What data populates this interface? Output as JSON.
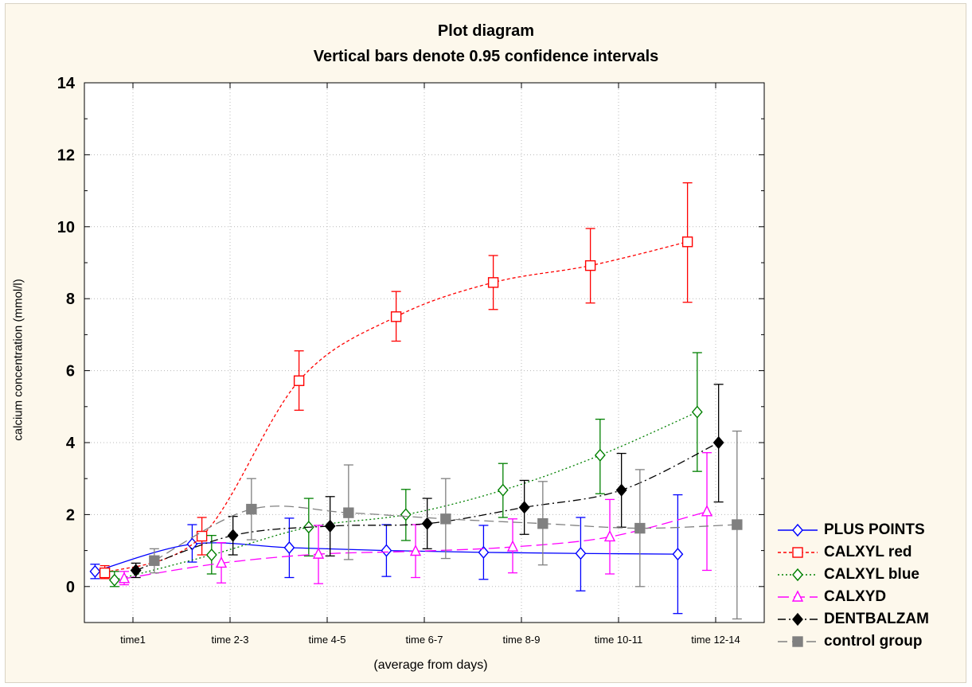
{
  "chart_data": {
    "type": "line",
    "title": "Plot diagram",
    "subtitle": "Vertical bars denote 0.95 confidence intervals",
    "xlabel": "(average from days)",
    "ylabel": "calcium concentration (mmol/l)",
    "ylim": [
      -1,
      14
    ],
    "yticks": [
      0,
      2,
      4,
      6,
      8,
      10,
      12,
      14
    ],
    "categories": [
      "time1",
      "time 2-3",
      "time 4-5",
      "time 6-7",
      "time 8-9",
      "time 10-11",
      "time 12-14"
    ],
    "grid": true,
    "legend_position": "bottom-right",
    "series": [
      {
        "name": "PLUS POINTS",
        "color": "#0000ff",
        "dash": "solid",
        "marker": "diamond-open",
        "values": [
          0.42,
          1.18,
          1.08,
          1.0,
          0.95,
          0.92,
          0.9
        ],
        "lower": [
          0.22,
          0.68,
          0.25,
          0.28,
          0.2,
          -0.12,
          -0.75
        ],
        "upper": [
          0.62,
          1.72,
          1.9,
          1.72,
          1.7,
          1.92,
          2.55
        ]
      },
      {
        "name": "CALXYL red",
        "color": "#ff0000",
        "dash": "dashed-short",
        "marker": "square-open",
        "values": [
          0.38,
          1.4,
          5.72,
          7.5,
          8.45,
          8.92,
          9.58
        ],
        "lower": [
          0.22,
          0.88,
          4.9,
          6.82,
          7.7,
          7.88,
          7.9
        ],
        "upper": [
          0.58,
          1.92,
          6.55,
          8.2,
          9.2,
          9.95,
          11.22
        ]
      },
      {
        "name": "CALXYL blue",
        "color": "#008000",
        "dash": "dotted",
        "marker": "diamond-open",
        "values": [
          0.18,
          0.88,
          1.65,
          2.0,
          2.68,
          3.65,
          4.85
        ],
        "lower": [
          0.0,
          0.35,
          0.85,
          1.28,
          1.92,
          2.58,
          3.2
        ],
        "upper": [
          0.42,
          1.42,
          2.45,
          2.7,
          3.42,
          4.65,
          6.5
        ]
      },
      {
        "name": "CALXYD",
        "color": "#ff00ff",
        "dash": "long-dash",
        "marker": "triangle-open",
        "values": [
          0.22,
          0.65,
          0.9,
          0.98,
          1.1,
          1.38,
          2.08
        ],
        "lower": [
          0.05,
          0.1,
          0.08,
          0.25,
          0.38,
          0.35,
          0.45
        ],
        "upper": [
          0.42,
          1.22,
          1.7,
          1.72,
          1.88,
          2.42,
          3.72
        ]
      },
      {
        "name": "DENTBALZAM",
        "color": "#000000",
        "dash": "dash-dot",
        "marker": "diamond-filled",
        "values": [
          0.45,
          1.42,
          1.68,
          1.75,
          2.2,
          2.68,
          4.0
        ],
        "lower": [
          0.25,
          0.88,
          0.85,
          1.05,
          1.45,
          1.65,
          2.35
        ],
        "upper": [
          0.65,
          1.95,
          2.5,
          2.45,
          2.95,
          3.7,
          5.62
        ]
      },
      {
        "name": "control group",
        "color": "#808080",
        "dash": "long-dash-gray",
        "marker": "square-filled",
        "values": [
          0.72,
          2.15,
          2.05,
          1.88,
          1.75,
          1.62,
          1.72
        ],
        "lower": [
          0.38,
          1.3,
          0.75,
          0.78,
          0.6,
          0.0,
          -0.9
        ],
        "upper": [
          1.05,
          3.0,
          3.38,
          3.0,
          2.92,
          3.25,
          4.32
        ]
      }
    ]
  }
}
